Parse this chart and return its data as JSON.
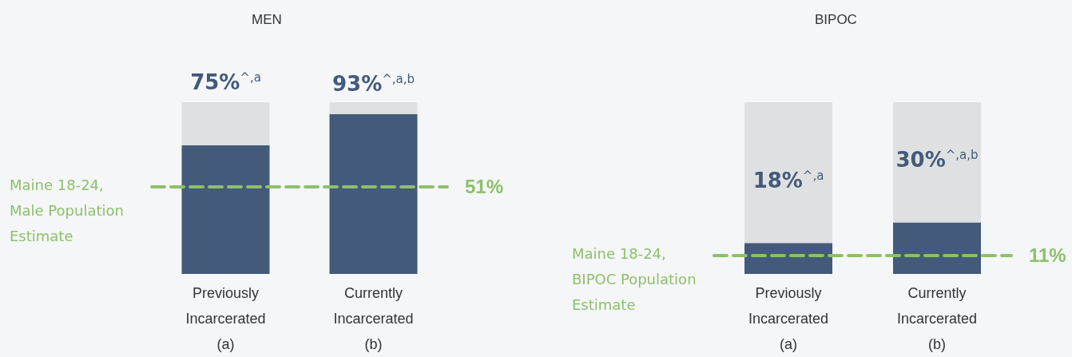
{
  "chart_data": [
    {
      "type": "bar",
      "title": "MEN",
      "categories": [
        "Previously Incarcerated (a)",
        "Currently Incarcerated (b)"
      ],
      "stacked": true,
      "ylim": [
        0,
        100
      ],
      "tick_labels": "x",
      "series": [
        {
          "color": "#435a7a",
          "values": [
            75,
            93
          ],
          "value_labels": [
            "75%$^{^,a}$",
            "93%$^{^,a,b}$"
          ]
        },
        {
          "color": "#dfe0e2",
          "values": [
            25,
            7
          ]
        }
      ],
      "ref_lines": [
        {
          "axis": "y",
          "value": 51,
          "label": "51%",
          "color": "#8dc06a",
          "line_style": "dashed"
        }
      ],
      "annotations": [
        "Maine 18-24, Male Population Estimate"
      ]
    },
    {
      "type": "bar",
      "title": "BIPOC",
      "categories": [
        "Previously Incarcerated (a)",
        "Currently Incarcerated (b)"
      ],
      "stacked": true,
      "ylim": [
        0,
        100
      ],
      "tick_labels": "x",
      "series": [
        {
          "color": "#435a7a",
          "values": [
            18,
            30
          ],
          "value_labels": [
            "18%$^{^,a}$",
            "30%$^{^,a,b}$"
          ]
        },
        {
          "color": "#dfe0e2",
          "values": [
            82,
            70
          ]
        }
      ],
      "ref_lines": [
        {
          "axis": "y",
          "value": 11,
          "label": "11%",
          "color": "#8dc06a",
          "line_style": "dashed"
        }
      ],
      "annotations": [
        "Maine 18-24, BIPOC Population Estimate"
      ]
    }
  ]
}
